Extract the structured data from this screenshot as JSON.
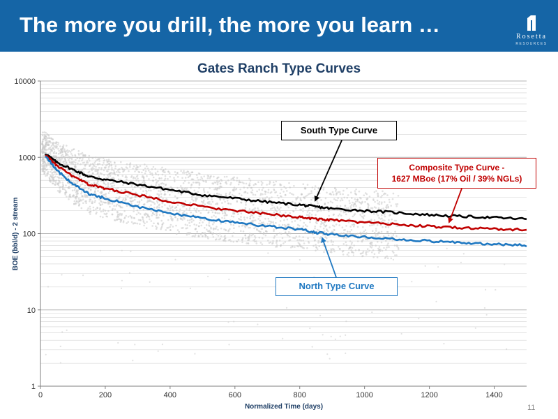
{
  "header": {
    "title": "The more you drill, the more you learn …",
    "logo_word": "Rosetta",
    "logo_sub": "RESOURCES"
  },
  "page_number": "11",
  "colors": {
    "header_bg": "#1565a6",
    "title": "#1f3f66",
    "south": "#000000",
    "composite": "#c00000",
    "north": "#1f78c1",
    "scatter": "#c8c8c8"
  },
  "chart_data": {
    "type": "line",
    "title": "Gates Ranch Type Curves",
    "xlabel": "Normalized Time (days)",
    "ylabel": "BOE (bbl/d) - 2 stream",
    "xlim": [
      0,
      1500
    ],
    "ylim": [
      1,
      10000
    ],
    "y_scale": "log",
    "x_ticks": [
      "0",
      "200",
      "400",
      "600",
      "800",
      "1000",
      "1200",
      "1400"
    ],
    "y_ticks": [
      "1",
      "10",
      "100",
      "1000",
      "10000"
    ],
    "grid": true,
    "x": [
      15,
      50,
      100,
      150,
      200,
      300,
      400,
      500,
      600,
      700,
      800,
      850,
      900,
      1000,
      1100,
      1200,
      1300,
      1400,
      1500
    ],
    "series": [
      {
        "name": "South Type Curve",
        "values": [
          1120,
          860,
          690,
          560,
          510,
          440,
          375,
          320,
          290,
          260,
          238,
          225,
          212,
          200,
          188,
          176,
          168,
          162,
          155
        ]
      },
      {
        "name": "Composite Type Curve - 1627 MBoe (17% Oil / 39% NGLs)",
        "values": [
          1080,
          780,
          560,
          440,
          390,
          320,
          265,
          225,
          200,
          180,
          165,
          155,
          150,
          140,
          132,
          124,
          119,
          115,
          112
        ]
      },
      {
        "name": "North Type Curve",
        "values": [
          1050,
          680,
          450,
          330,
          290,
          225,
          185,
          158,
          140,
          125,
          114,
          103,
          98,
          90,
          84,
          80,
          76,
          73,
          70
        ]
      }
    ],
    "annotations": [
      {
        "label": "South Type Curve",
        "series": 0
      },
      {
        "label_line1": "Composite Type Curve -",
        "label_line2": "1627 MBoe (17% Oil / 39% NGLs)",
        "series": 1
      },
      {
        "label": "North Type Curve",
        "series": 2
      }
    ]
  }
}
